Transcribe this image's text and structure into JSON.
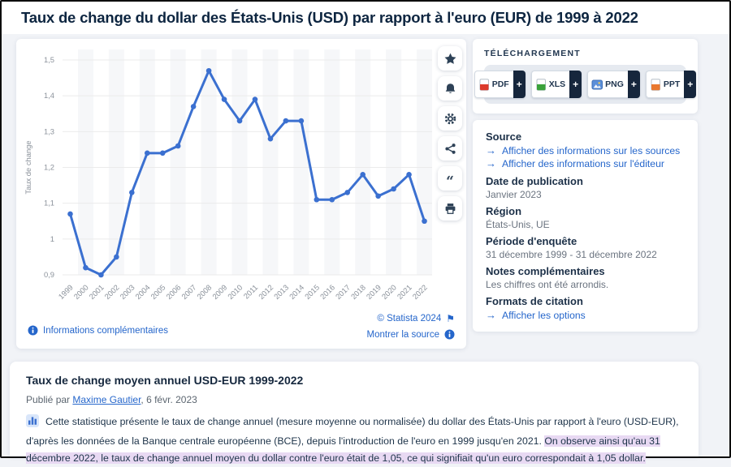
{
  "page_title": "Taux de change du dollar des États-Unis (USD) par rapport à l'euro (EUR) de 1999 à 2022",
  "icons": {
    "arrow_right": "→",
    "plus": "+",
    "flag": "⚑",
    "toolbar": [
      "favorite-star",
      "notifications-bell",
      "settings-gear",
      "share",
      "cite-quote",
      "print"
    ]
  },
  "chart_data": {
    "type": "line",
    "title": "Taux de change du dollar des États-Unis (USD) par rapport à l'euro (EUR) de 1999 à 2022",
    "x": [
      "1999",
      "2000",
      "2001",
      "2002",
      "2003",
      "2004",
      "2005",
      "2006",
      "2007",
      "2008",
      "2009",
      "2010",
      "2011",
      "2012",
      "2013",
      "2014",
      "2015",
      "2016",
      "2017",
      "2018",
      "2019",
      "2020",
      "2021",
      "2022"
    ],
    "values": [
      1.07,
      0.92,
      0.9,
      0.95,
      1.13,
      1.24,
      1.24,
      1.26,
      1.37,
      1.47,
      1.39,
      1.33,
      1.39,
      1.28,
      1.33,
      1.33,
      1.11,
      1.11,
      1.13,
      1.18,
      1.12,
      1.14,
      1.18,
      1.05
    ],
    "xlabel": "",
    "ylabel": "Taux de change",
    "ylim": [
      0.9,
      1.5
    ],
    "ytick_step": 0.1,
    "ytick_labels": [
      "0,9",
      "1",
      "1,1",
      "1,2",
      "1,3",
      "1,4",
      "1,5"
    ],
    "grid": true,
    "legend": false,
    "number_format": "fr-comma",
    "line_color": "#3b70d0",
    "marker": "circle"
  },
  "chart_footer": {
    "info_link": "Informations complémentaires",
    "copyright": "© Statista 2024",
    "source_link": "Montrer la source"
  },
  "download": {
    "title": "TÉLÉCHARGEMENT",
    "buttons": [
      {
        "label": "PDF",
        "color": "#dc3a2c"
      },
      {
        "label": "XLS",
        "color": "#3aa23a"
      },
      {
        "label": "PNG",
        "color": "#5b8fd9"
      },
      {
        "label": "PPT",
        "color": "#e9782f"
      }
    ]
  },
  "details": {
    "source_heading": "Source",
    "source_links": [
      "Afficher des informations sur les sources",
      "Afficher des informations sur l'éditeur"
    ],
    "publication_heading": "Date de publication",
    "publication_value": "Janvier 2023",
    "region_heading": "Région",
    "region_value": "États-Unis, UE",
    "survey_heading": "Période d'enquête",
    "survey_value": "31 décembre 1999 - 31 décembre 2022",
    "notes_heading": "Notes complémentaires",
    "notes_value": "Les chiffres ont été arrondis.",
    "citation_heading": "Formats de citation",
    "citation_link": "Afficher les options"
  },
  "article": {
    "title": "Taux de change moyen annuel USD-EUR 1999-2022",
    "published_prefix": "Publié par",
    "author": "Maxime Gautier",
    "published_suffix": ", 6 févr. 2023",
    "body_normal": "Cette statistique présente le taux de change annuel (mesure moyenne ou normalisée) du dollar des États-Unis par rapport à l'euro (USD-EUR), d'après les données de la Banque centrale européenne (BCE), depuis l'introduction de l'euro en 1999 jusqu'en 2021. ",
    "body_highlight": "On observe ainsi qu'au 31 décembre 2022, le taux de change annuel moyen du dollar contre l'euro était de 1,05, ce qui signifiait qu'un euro correspondait à 1,05 dollar.",
    "highlight_color": "#e8d9f3"
  }
}
